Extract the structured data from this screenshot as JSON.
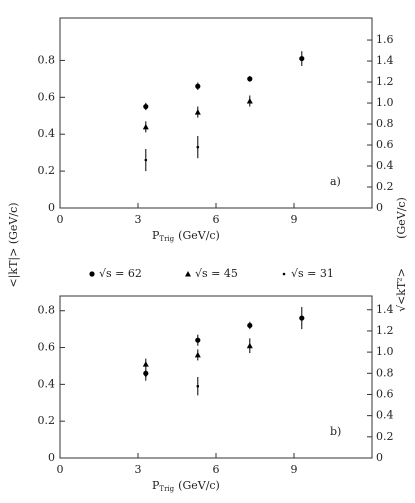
{
  "y_label": "<|kT|> (GeV/c)",
  "y2_label_unit": "(GeV/c)",
  "y2_label": "√<kT²>",
  "chart_data": [
    {
      "type": "scatter",
      "panel_label": "a)",
      "x_label": "P",
      "x_label_sub": "Trig",
      "x_label_unit": "(GeV/c)",
      "xlim": [
        0,
        12
      ],
      "xticks": [
        0,
        3,
        6,
        9
      ],
      "ylim": [
        0,
        1.03
      ],
      "yticks": [
        0,
        0.2,
        0.4,
        0.6,
        0.8
      ],
      "y2lim": [
        0,
        1.81
      ],
      "y2ticks": [
        0,
        0.2,
        0.4,
        0.6,
        0.8,
        {
          "value": 1,
          "label": "1.0"
        },
        1.2,
        1.4,
        1.6
      ],
      "x": [
        3.3,
        5.3,
        7.3,
        9.3
      ],
      "series": [
        {
          "name": "√s = 62",
          "marker": "circle",
          "color": "#000",
          "values": [
            0.55,
            0.66,
            0.7,
            0.81
          ],
          "errors": [
            0.02,
            0.02,
            0.015,
            0.04
          ]
        },
        {
          "name": "√s = 45",
          "marker": "triangle",
          "color": "#000",
          "values": [
            0.44,
            0.52,
            0.58,
            null
          ],
          "errors": [
            0.03,
            0.03,
            0.03,
            null
          ]
        },
        {
          "name": "√s = 31",
          "marker": "dot",
          "color": "#000",
          "values": [
            0.26,
            0.33,
            null,
            null
          ],
          "errors": [
            0.06,
            0.06,
            null,
            null
          ]
        }
      ]
    },
    {
      "type": "scatter",
      "panel_label": "b)",
      "x_label": "P",
      "x_label_sub": "Trig",
      "x_label_unit": "(GeV/c)",
      "xlim": [
        0,
        12
      ],
      "xticks": [
        0,
        3,
        6,
        9
      ],
      "ylim": [
        0,
        0.88
      ],
      "yticks": [
        0,
        0.2,
        0.4,
        0.6,
        0.8
      ],
      "y2lim": [
        0,
        1.53
      ],
      "y2ticks": [
        0,
        0.2,
        0.4,
        0.6,
        0.8,
        {
          "value": 1,
          "label": "1.0"
        },
        1.2,
        1.4
      ],
      "x": [
        3.3,
        5.3,
        7.3,
        9.3
      ],
      "series": [
        {
          "marker": "circle",
          "color": "#000",
          "values": [
            0.46,
            0.64,
            0.72,
            0.76
          ],
          "errors": [
            0.02,
            0.03,
            0.02,
            0.06
          ]
        },
        {
          "marker": "triangle",
          "color": "#000",
          "values": [
            0.51,
            0.56,
            0.61,
            null
          ],
          "errors": [
            0.03,
            0.03,
            0.04,
            null
          ]
        },
        {
          "marker": "dot",
          "color": "#000",
          "values": [
            0.45,
            0.39,
            null,
            null
          ],
          "errors": [
            0.03,
            0.05,
            null,
            null
          ]
        }
      ]
    }
  ]
}
